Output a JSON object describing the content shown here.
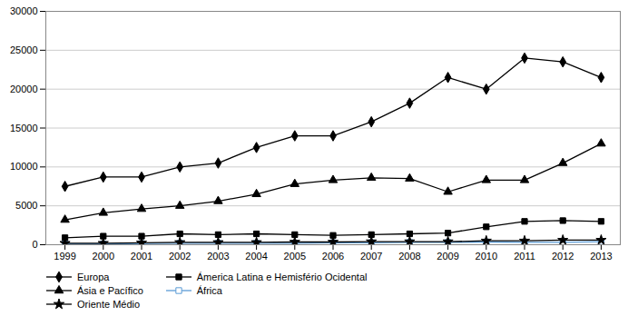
{
  "chart_data": {
    "type": "line",
    "x": [
      1999,
      2000,
      2001,
      2002,
      2003,
      2004,
      2005,
      2006,
      2007,
      2008,
      2009,
      2010,
      2011,
      2012,
      2013
    ],
    "series": [
      {
        "name": "Europa",
        "color": "black",
        "marker": "diamond",
        "values": [
          7500,
          8700,
          8700,
          10000,
          10500,
          12500,
          14000,
          14000,
          15800,
          18200,
          21500,
          20000,
          24000,
          23500,
          21500
        ]
      },
      {
        "name": "Ámerica Latina e Hemisfério Ocidental",
        "color": "black",
        "marker": "square",
        "values": [
          900,
          1100,
          1100,
          1400,
          1300,
          1400,
          1300,
          1200,
          1300,
          1400,
          1500,
          2300,
          3000,
          3100,
          3000
        ]
      },
      {
        "name": "Ásia e Pacífico",
        "color": "black",
        "marker": "triangle",
        "values": [
          3200,
          4100,
          4600,
          5000,
          5600,
          6500,
          7800,
          8300,
          8600,
          8500,
          6800,
          8300,
          8300,
          10500,
          13000
        ]
      },
      {
        "name": "África",
        "color": "#5B9BD5",
        "marker": "square_open",
        "values": [
          100,
          100,
          150,
          200,
          200,
          200,
          200,
          250,
          250,
          300,
          300,
          350,
          300,
          300,
          400
        ]
      },
      {
        "name": "Oriente Médio",
        "color": "black",
        "marker": "star",
        "values": [
          200,
          200,
          250,
          300,
          300,
          300,
          350,
          350,
          400,
          400,
          400,
          500,
          500,
          600,
          600
        ]
      }
    ],
    "xlim": [
      1998.5,
      2013.5
    ],
    "xticks": [
      1999,
      2000,
      2001,
      2002,
      2003,
      2004,
      2005,
      2006,
      2007,
      2008,
      2009,
      2010,
      2011,
      2012,
      2013
    ],
    "ylim": [
      0,
      30000
    ],
    "yticks": [
      0,
      5000,
      10000,
      15000,
      20000,
      25000,
      30000
    ],
    "grid": true,
    "legend": "bottom"
  }
}
